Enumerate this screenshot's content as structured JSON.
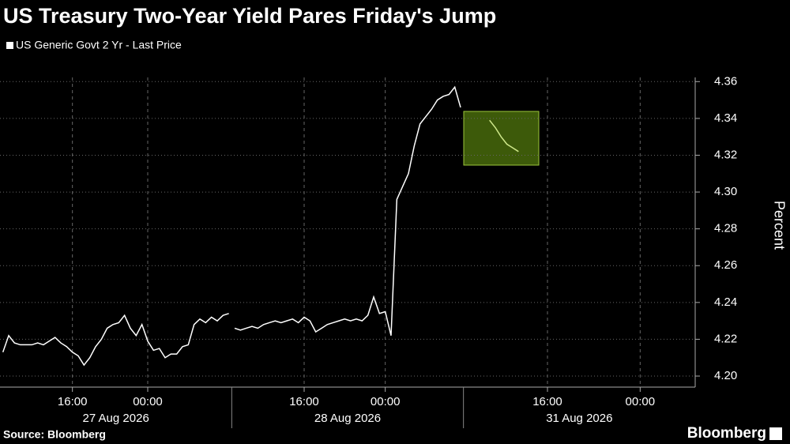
{
  "chart_data": {
    "type": "line",
    "title": "US Treasury Two-Year Yield Pares Friday's Jump",
    "ylabel": "Percent",
    "source": "Source: Bloomberg",
    "brand": "Bloomberg",
    "color": "#ffffff",
    "grid": true,
    "series": [
      {
        "name": "US Generic Govt 2 Yr - Last Price",
        "color": "#ffffff"
      }
    ],
    "ylim": [
      4.194,
      4.37
    ],
    "yticks": [
      {
        "value": 4.2,
        "label": "4.20"
      },
      4.22,
      4.24,
      4.26,
      4.28,
      {
        "value": 4.3,
        "label": "4.30"
      },
      4.32,
      4.34,
      4.36
    ],
    "sessions": [
      {
        "date": "27 Aug 2026",
        "categories": [
          null,
          null,
          null,
          null,
          null,
          null,
          null,
          null,
          null,
          null,
          null,
          null,
          "16:00",
          null,
          null,
          null,
          null,
          null,
          null,
          null,
          null,
          null,
          null,
          null,
          null,
          "00:00",
          null,
          null,
          null,
          null,
          null,
          null,
          null,
          null,
          null,
          null,
          null,
          null,
          null,
          null
        ],
        "values": [
          4.213,
          4.222,
          4.218,
          4.217,
          4.217,
          4.217,
          4.218,
          4.217,
          4.219,
          4.221,
          4.218,
          4.216,
          4.213,
          4.211,
          4.206,
          4.21,
          4.216,
          4.22,
          4.226,
          4.228,
          4.229,
          4.233,
          4.226,
          4.222,
          4.228,
          4.219,
          4.214,
          4.215,
          4.21,
          4.212,
          4.212,
          4.216,
          4.217,
          4.228,
          4.231,
          4.229,
          4.232,
          4.23,
          4.233,
          4.234
        ]
      },
      {
        "date": "28 Aug 2026",
        "categories": [
          null,
          null,
          null,
          null,
          null,
          null,
          null,
          null,
          null,
          null,
          null,
          null,
          "16:00",
          null,
          null,
          null,
          null,
          null,
          null,
          null,
          null,
          null,
          null,
          null,
          null,
          null,
          "00:00",
          null,
          null,
          null,
          null,
          null,
          null,
          null,
          null,
          null,
          null,
          null,
          null,
          null
        ],
        "values": [
          4.226,
          4.225,
          4.226,
          4.227,
          4.226,
          4.228,
          4.229,
          4.23,
          4.229,
          4.23,
          4.231,
          4.229,
          4.232,
          4.23,
          4.224,
          4.226,
          4.228,
          4.229,
          4.23,
          4.231,
          4.23,
          4.231,
          4.23,
          4.233,
          4.243,
          4.234,
          4.235,
          4.222,
          4.296,
          4.303,
          4.31,
          4.325,
          4.337,
          4.341,
          4.345,
          4.35,
          4.352,
          4.353,
          4.357,
          4.346
        ]
      },
      {
        "date": "31 Aug 2026",
        "categories": [
          null,
          null,
          null,
          null,
          null,
          null,
          null,
          null,
          null,
          null,
          null,
          null,
          null,
          null,
          "16:00",
          null,
          null,
          null,
          null,
          null,
          null,
          null,
          null,
          null,
          null,
          null,
          null,
          null,
          null,
          null,
          "00:00",
          null,
          null,
          null,
          null,
          null,
          null,
          null,
          null,
          null
        ],
        "values": [
          null,
          null,
          null,
          null,
          4.339,
          4.335,
          4.33,
          4.326,
          4.324,
          4.322,
          null,
          null,
          null,
          null,
          null,
          null,
          null,
          null,
          null,
          null,
          null,
          null,
          null,
          null,
          null,
          null,
          null,
          null,
          null,
          null,
          null,
          null,
          null,
          null,
          null,
          null,
          null,
          null,
          null,
          null
        ]
      }
    ]
  }
}
